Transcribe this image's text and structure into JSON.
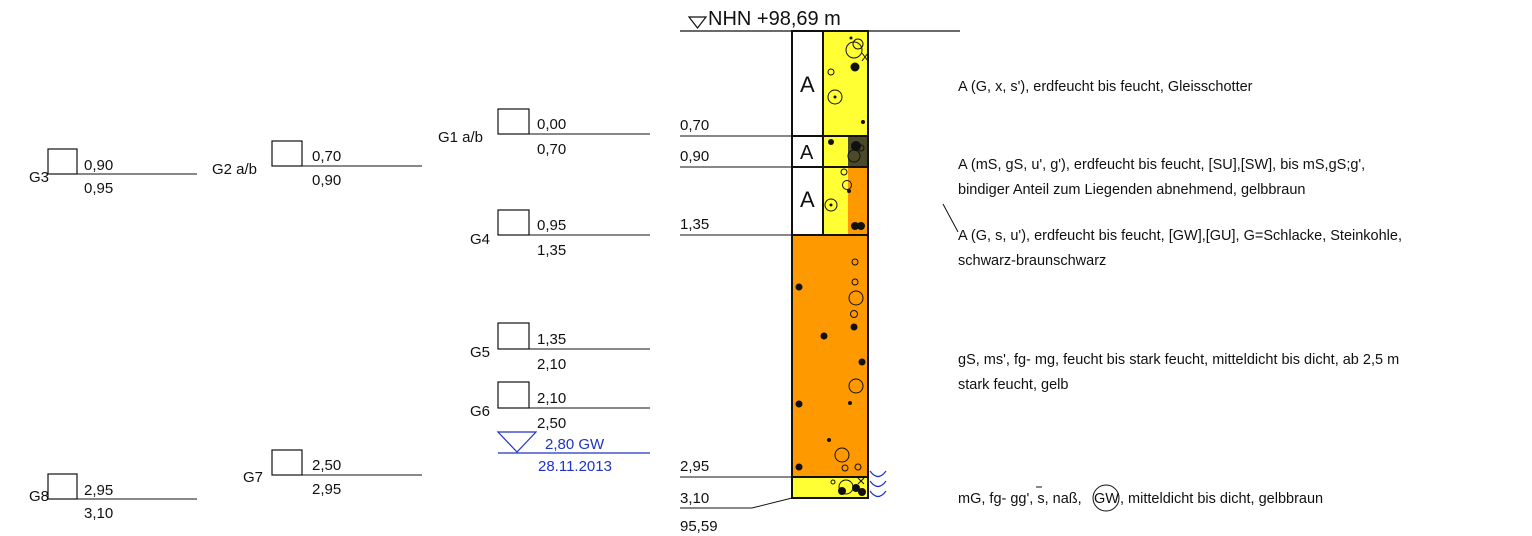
{
  "header": {
    "elevation_label": "NHN +98,69 m"
  },
  "samples": [
    {
      "id": "G3",
      "label": "G3",
      "top": "0,90",
      "bottom": "0,95"
    },
    {
      "id": "G2",
      "label": "G2 a/b",
      "top": "0,70",
      "bottom": "0,90"
    },
    {
      "id": "G1",
      "label": "G1 a/b",
      "top": "0,00",
      "bottom": "0,70"
    },
    {
      "id": "G4",
      "label": "G4",
      "top": "0,95",
      "bottom": "1,35"
    },
    {
      "id": "G5",
      "label": "G5",
      "top": "1,35",
      "bottom": "2,10"
    },
    {
      "id": "G6",
      "label": "G6",
      "top": "2,10",
      "bottom": "2,50"
    },
    {
      "id": "G7",
      "label": "G7",
      "top": "2,50",
      "bottom": "2,95"
    },
    {
      "id": "G8",
      "label": "G8",
      "top": "2,95",
      "bottom": "3,10"
    }
  ],
  "groundwater": {
    "depth_label": "2,80 GW",
    "date": "28.11.2013"
  },
  "column": {
    "layer_bottoms": [
      "0,70",
      "0,90",
      "1,35",
      "2,95",
      "3,10"
    ],
    "base_elevation": "95,59",
    "fill_marker": "A"
  },
  "descriptions": [
    "A (G, x, s'), erdfeucht bis feucht, Gleisschotter",
    "A (mS, gS, u', g'), erdfeucht bis feucht, [SU],[SW], bis mS,gS;g',",
    "bindiger Anteil zum Liegenden abnehmend, gelbbraun",
    "A (G, s, u'), erdfeucht bis feucht, [GW],[GU], G=Schlacke, Steinkohle,",
    "schwarz-braunschwarz",
    "gS, ms', fg- mg, feucht bis stark feucht, mitteldicht bis dicht, ab 2,5 m",
    "stark feucht, gelb",
    "mG, fg- gg', s, naß,",
    "GW",
    ", mitteldicht bis dicht, gelbbraun"
  ],
  "colors": {
    "yellow": "#ffff33",
    "orange": "#ff9900",
    "olive": "#4a4a2a",
    "blue": "#1f33c8"
  }
}
